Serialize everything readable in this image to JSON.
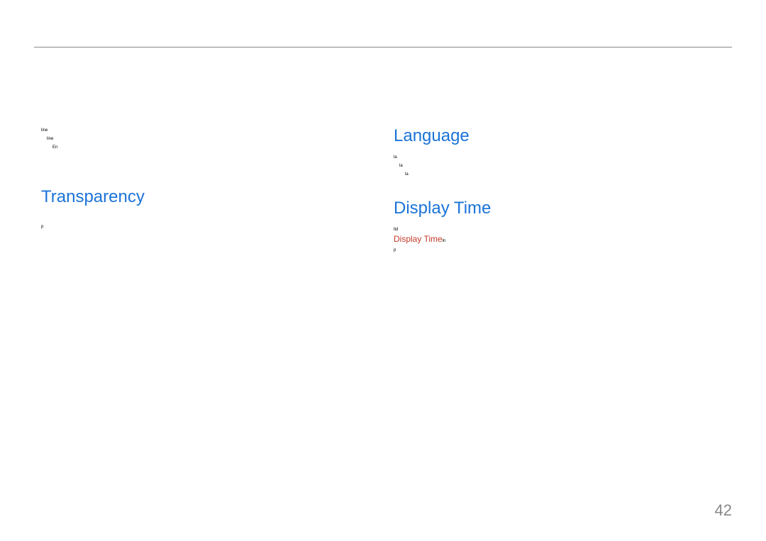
{
  "page_number": "42",
  "colors": {
    "heading": "#1b73d8",
    "highlight": "#c33a2a",
    "rule": "#888888",
    "text": "#000000",
    "background": "#ffffff",
    "page_number": "#888888"
  },
  "typography": {
    "heading_fontsize": 24,
    "body_fontsize": 6,
    "highlight_fontsize": 12,
    "pagenum_fontsize": 22
  },
  "left_column": {
    "intro_lines": [
      "line",
      "line",
      "En"
    ],
    "heading_transparency": "Transparency",
    "transparency_lines": [
      "p"
    ]
  },
  "right_column": {
    "heading_language": "Language",
    "language_lines": [
      "la",
      "la",
      "la"
    ],
    "heading_display_time": "Display Time",
    "display_time_lines_pre": [
      "ltd"
    ],
    "display_time_label": "Display Time",
    "display_time_suffix": "ln",
    "display_time_lines_post": [
      "p"
    ]
  }
}
